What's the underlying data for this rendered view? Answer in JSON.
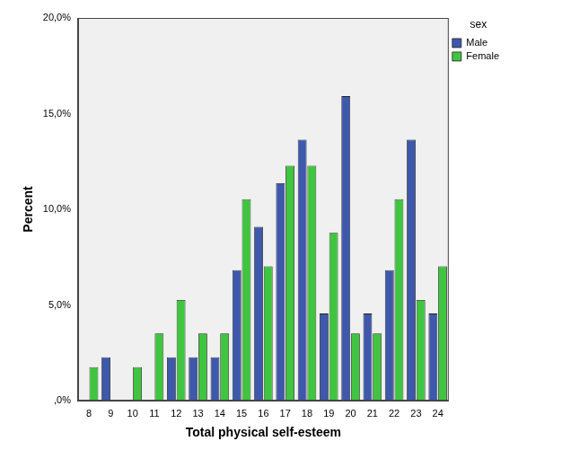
{
  "chart_data": {
    "type": "bar",
    "x_label": "Total physical self-esteem",
    "y_label": "Percent",
    "legend_title": "sex",
    "categories": [
      "8",
      "9",
      "10",
      "11",
      "12",
      "13",
      "14",
      "15",
      "16",
      "17",
      "18",
      "19",
      "20",
      "21",
      "22",
      "23",
      "24"
    ],
    "series": [
      {
        "name": "Male",
        "color": "#3e58ac",
        "values": [
          0,
          2.27,
          0,
          0,
          2.27,
          2.27,
          2.27,
          6.82,
          9.09,
          11.36,
          13.64,
          4.55,
          15.91,
          4.55,
          6.82,
          13.64,
          4.55
        ]
      },
      {
        "name": "Female",
        "color": "#3fc53f",
        "values": [
          1.75,
          0,
          1.75,
          3.51,
          5.26,
          3.51,
          3.51,
          10.53,
          7.02,
          12.28,
          12.28,
          8.77,
          3.51,
          3.51,
          10.53,
          5.26,
          7.02
        ]
      }
    ],
    "ylim": [
      0,
      20
    ],
    "yticks": [
      {
        "value": 0,
        "label": ",0%"
      },
      {
        "value": 5,
        "label": "5,0%"
      },
      {
        "value": 10,
        "label": "10,0%"
      },
      {
        "value": 15,
        "label": "15,0%"
      },
      {
        "value": 20,
        "label": "20,0%"
      }
    ],
    "grid": false,
    "legend": "top-right"
  }
}
